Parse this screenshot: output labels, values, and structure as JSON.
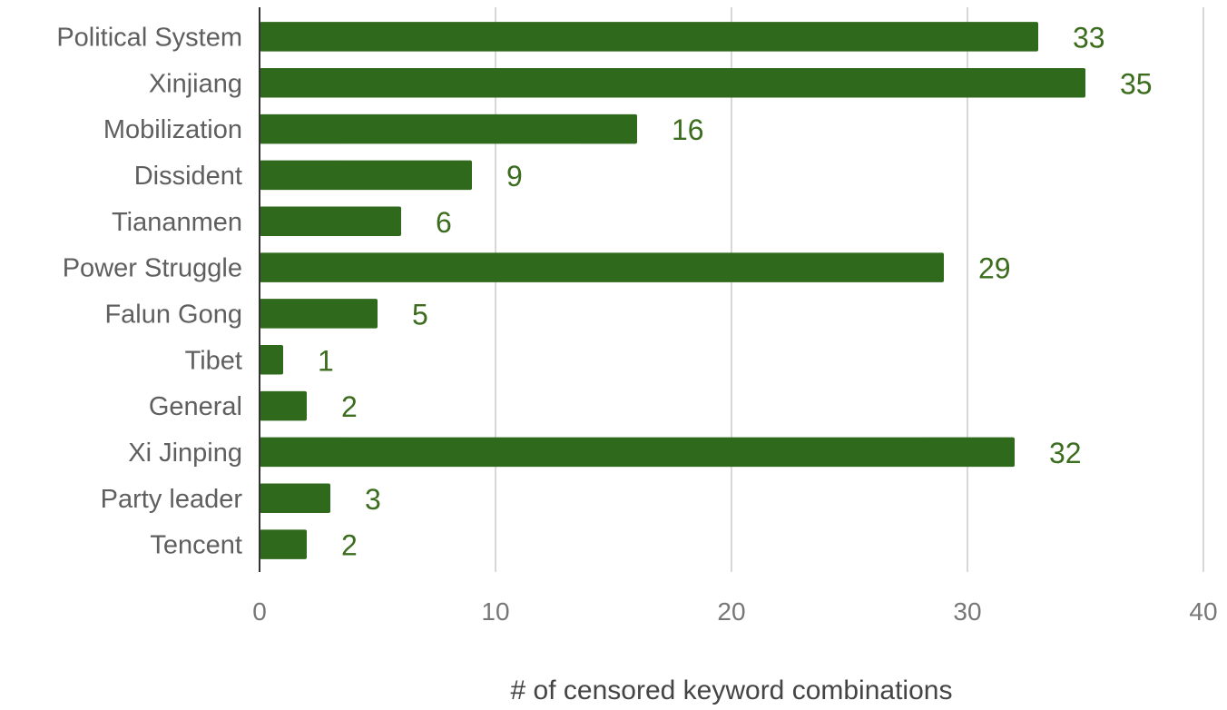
{
  "chart_data": {
    "type": "bar",
    "orientation": "horizontal",
    "categories": [
      "Political System",
      "Xinjiang",
      "Mobilization",
      "Dissident",
      "Tiananmen",
      "Power Struggle",
      "Falun Gong",
      "Tibet",
      "General",
      "Xi Jinping",
      "Party leader",
      "Tencent"
    ],
    "values": [
      33,
      35,
      16,
      9,
      6,
      29,
      5,
      1,
      2,
      32,
      3,
      2
    ],
    "xlabel": "# of censored keyword combinations",
    "ylabel": "",
    "xlim": [
      0,
      40
    ],
    "xticks": [
      0,
      10,
      20,
      30,
      40
    ],
    "grid": "vertical",
    "legend": "none",
    "bar_color": "#2f6a1c",
    "data_label_color": "#3c6d1f"
  }
}
